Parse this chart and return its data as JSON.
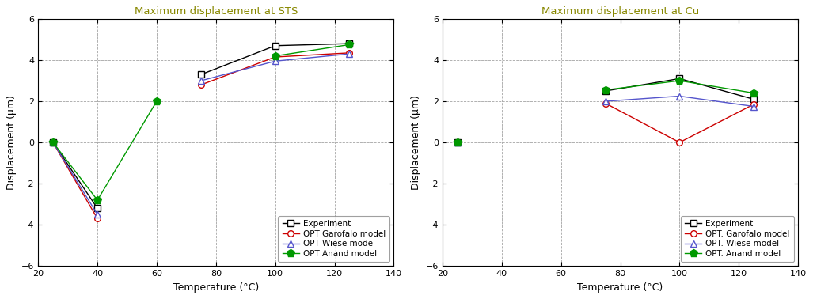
{
  "left": {
    "title": "Maximum displacement at STS",
    "x": [
      25,
      40,
      60,
      75,
      100,
      125
    ],
    "experiment": [
      0.0,
      -3.2,
      null,
      3.3,
      4.7,
      4.8
    ],
    "garofalo": [
      0.0,
      -3.7,
      null,
      2.8,
      4.15,
      4.35
    ],
    "wiese": [
      0.0,
      -3.5,
      null,
      3.0,
      3.95,
      4.3
    ],
    "anand": [
      0.0,
      -2.8,
      2.0,
      null,
      4.2,
      4.75
    ]
  },
  "right": {
    "title": "Maximum displacement at Cu",
    "x": [
      25,
      40,
      60,
      75,
      100,
      125
    ],
    "experiment": [
      0.0,
      null,
      null,
      2.5,
      3.1,
      2.1
    ],
    "garofalo": [
      0.0,
      null,
      null,
      1.9,
      0.0,
      1.85
    ],
    "wiese": [
      0.0,
      null,
      null,
      2.0,
      2.25,
      1.75
    ],
    "anand": [
      0.0,
      null,
      null,
      2.55,
      3.0,
      2.4
    ]
  },
  "ylabel": "Displacement (μm)",
  "xlabel": "Temperature (°C)",
  "ylim": [
    -6,
    6
  ],
  "xlim": [
    20,
    140
  ],
  "xticks": [
    20,
    40,
    60,
    80,
    100,
    120,
    140
  ],
  "yticks": [
    -6,
    -4,
    -2,
    0,
    2,
    4,
    6
  ],
  "left_legend_labels": [
    "Experiment",
    "OPT Garofalo model",
    "OPT Wiese model",
    "OPT Anand model"
  ],
  "right_legend_labels": [
    "Experiment",
    "OPT. Garofalo model",
    "OPT. Wiese model",
    "OPT. Anand model"
  ],
  "colors": {
    "experiment": "#000000",
    "garofalo": "#cc0000",
    "wiese": "#5555cc",
    "anand": "#009900"
  },
  "bg_color": "#ffffff",
  "grid_color": "#999999",
  "title_color": "#888800"
}
